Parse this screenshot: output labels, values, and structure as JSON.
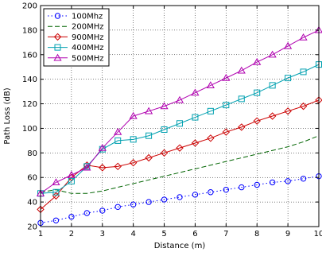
{
  "chart_data": {
    "type": "line",
    "xlabel": "Distance (m)",
    "ylabel": "Path Loss (dB)",
    "xlim": [
      1,
      10
    ],
    "ylim": [
      20,
      200
    ],
    "xticks": [
      1,
      2,
      3,
      4,
      5,
      6,
      7,
      8,
      9,
      10
    ],
    "yticks": [
      20,
      40,
      60,
      80,
      100,
      120,
      140,
      160,
      180,
      200
    ],
    "grid": true,
    "legend_position": "top-left",
    "series": [
      {
        "name": "100Mhz",
        "color": "#0000ff",
        "line_style": "dotted",
        "marker": "circle",
        "x": [
          1,
          1.5,
          2,
          2.5,
          3,
          3.5,
          4,
          4.5,
          5,
          5.5,
          6,
          6.5,
          7,
          7.5,
          8,
          8.5,
          9,
          9.5,
          10
        ],
        "y": [
          23,
          25,
          28,
          31,
          33,
          36,
          38,
          40,
          42,
          44,
          46,
          48,
          50,
          52,
          54,
          56,
          57,
          59,
          61
        ]
      },
      {
        "name": "200MHz",
        "color": "#006400",
        "line_style": "dashed",
        "marker": "none",
        "x": [
          1,
          1.5,
          2,
          2.5,
          3,
          3.5,
          4,
          4.5,
          5,
          5.5,
          6,
          6.5,
          7,
          7.5,
          8,
          8.5,
          9,
          9.5,
          10
        ],
        "y": [
          48,
          50,
          47,
          47,
          49,
          52,
          55,
          58,
          61,
          64,
          67,
          70,
          73,
          76,
          79,
          82,
          85,
          89,
          94
        ]
      },
      {
        "name": "900MHz",
        "color": "#cc0000",
        "line_style": "solid",
        "marker": "diamond",
        "x": [
          1,
          1.5,
          2,
          2.5,
          3,
          3.5,
          4,
          4.5,
          5,
          5.5,
          6,
          6.5,
          7,
          7.5,
          8,
          8.5,
          9,
          9.5,
          10
        ],
        "y": [
          34,
          45,
          60,
          70,
          68,
          69,
          72,
          76,
          80,
          84,
          88,
          92,
          97,
          101,
          106,
          110,
          114,
          118,
          123
        ]
      },
      {
        "name": "400MHz",
        "color": "#00a0b0",
        "line_style": "solid",
        "marker": "square",
        "x": [
          1,
          1.5,
          2,
          2.5,
          3,
          3.5,
          4,
          4.5,
          5,
          5.5,
          6,
          6.5,
          7,
          7.5,
          8,
          8.5,
          9,
          9.5,
          10
        ],
        "y": [
          47,
          48,
          57,
          69,
          83,
          90,
          91,
          94,
          99,
          104,
          109,
          114,
          119,
          124,
          129,
          135,
          141,
          146,
          152
        ]
      },
      {
        "name": "500MHz",
        "color": "#b000b0",
        "line_style": "solid",
        "marker": "triangle",
        "x": [
          1,
          1.5,
          2,
          2.5,
          3,
          3.5,
          4,
          4.5,
          5,
          5.5,
          6,
          6.5,
          7,
          7.5,
          8,
          8.5,
          9,
          9.5,
          10
        ],
        "y": [
          47,
          56,
          62,
          68,
          84,
          97,
          110,
          114,
          118,
          123,
          129,
          135,
          141,
          147,
          154,
          160,
          167,
          174,
          180
        ]
      }
    ]
  }
}
